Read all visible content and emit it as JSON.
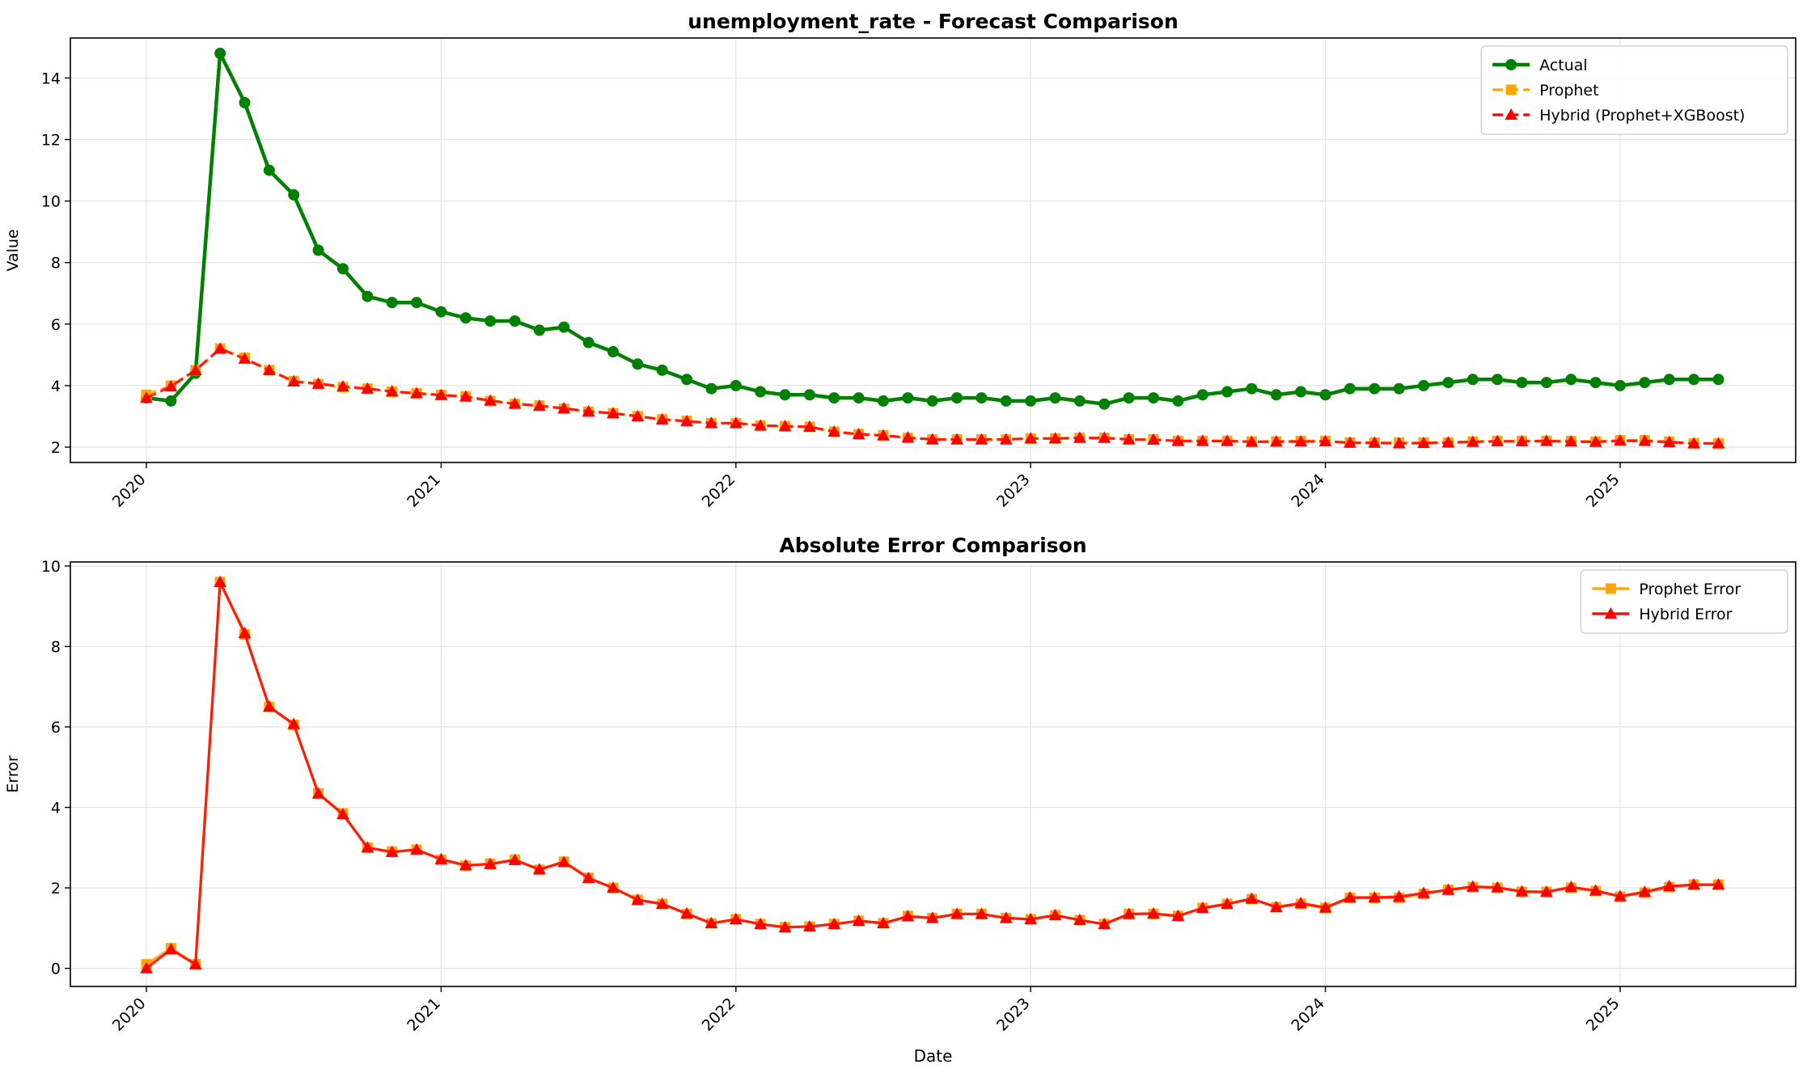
{
  "chart_data": [
    {
      "type": "line",
      "title": "unemployment_rate - Forecast Comparison",
      "xlabel": "",
      "ylabel": "Value",
      "x_ticks": [
        "2020",
        "2021",
        "2022",
        "2023",
        "2024",
        "2025"
      ],
      "y_ticks": [
        "2",
        "4",
        "6",
        "8",
        "10",
        "12",
        "14"
      ],
      "ylim": [
        1.5,
        15.3
      ],
      "grid": true,
      "legend_position": "top-right",
      "x": [
        "2020-01",
        "2020-02",
        "2020-03",
        "2020-04",
        "2020-05",
        "2020-06",
        "2020-07",
        "2020-08",
        "2020-09",
        "2020-10",
        "2020-11",
        "2020-12",
        "2021-01",
        "2021-02",
        "2021-03",
        "2021-04",
        "2021-05",
        "2021-06",
        "2021-07",
        "2021-08",
        "2021-09",
        "2021-10",
        "2021-11",
        "2021-12",
        "2022-01",
        "2022-02",
        "2022-03",
        "2022-04",
        "2022-05",
        "2022-06",
        "2022-07",
        "2022-08",
        "2022-09",
        "2022-10",
        "2022-11",
        "2022-12",
        "2023-01",
        "2023-02",
        "2023-03",
        "2023-04",
        "2023-05",
        "2023-06",
        "2023-07",
        "2023-08",
        "2023-09",
        "2023-10",
        "2023-11",
        "2023-12",
        "2024-01",
        "2024-02",
        "2024-03",
        "2024-04",
        "2024-05",
        "2024-06",
        "2024-07",
        "2024-08",
        "2024-09",
        "2024-10",
        "2024-11",
        "2024-12",
        "2025-01",
        "2025-02",
        "2025-03",
        "2025-04",
        "2025-05"
      ],
      "series": [
        {
          "name": "Actual",
          "color": "#008000",
          "marker": "circle",
          "style": "solid",
          "values": [
            3.6,
            3.5,
            4.4,
            14.8,
            13.2,
            11.0,
            10.2,
            8.4,
            7.8,
            6.9,
            6.7,
            6.7,
            6.4,
            6.2,
            6.1,
            6.1,
            5.8,
            5.9,
            5.4,
            5.1,
            4.7,
            4.5,
            4.2,
            3.9,
            4.0,
            3.8,
            3.7,
            3.7,
            3.6,
            3.6,
            3.5,
            3.6,
            3.5,
            3.6,
            3.6,
            3.5,
            3.5,
            3.6,
            3.5,
            3.4,
            3.6,
            3.6,
            3.5,
            3.7,
            3.8,
            3.9,
            3.7,
            3.8,
            3.7,
            3.9,
            3.9,
            3.9,
            4.0,
            4.1,
            4.2,
            4.2,
            4.1,
            4.1,
            4.2,
            4.1,
            4.0,
            4.1,
            4.2,
            4.2,
            4.2
          ]
        },
        {
          "name": "Prophet",
          "color": "#FFA500",
          "marker": "square",
          "style": "dashed",
          "values": [
            3.7,
            4.0,
            4.5,
            5.2,
            4.9,
            4.5,
            4.15,
            4.05,
            3.95,
            3.9,
            3.8,
            3.75,
            3.7,
            3.65,
            3.5,
            3.4,
            3.35,
            3.25,
            3.15,
            3.1,
            3.0,
            2.9,
            2.85,
            2.78,
            2.78,
            2.7,
            2.68,
            2.66,
            2.5,
            2.42,
            2.38,
            2.3,
            2.25,
            2.25,
            2.25,
            2.25,
            2.28,
            2.28,
            2.3,
            2.3,
            2.25,
            2.25,
            2.2,
            2.2,
            2.2,
            2.18,
            2.18,
            2.2,
            2.2,
            2.15,
            2.15,
            2.15,
            2.15,
            2.15,
            2.18,
            2.2,
            2.2,
            2.2,
            2.2,
            2.18,
            2.22,
            2.22,
            2.18,
            2.12,
            2.12
          ]
        },
        {
          "name": "Hybrid (Prophet+XGBoost)",
          "color": "#FF0000",
          "marker": "triangle",
          "style": "dashed",
          "values": [
            3.6,
            3.97,
            4.5,
            5.2,
            4.87,
            4.5,
            4.13,
            4.06,
            3.97,
            3.9,
            3.81,
            3.75,
            3.69,
            3.64,
            3.51,
            3.41,
            3.34,
            3.26,
            3.16,
            3.1,
            3.0,
            2.9,
            2.84,
            2.78,
            2.78,
            2.7,
            2.68,
            2.66,
            2.5,
            2.42,
            2.38,
            2.31,
            2.25,
            2.25,
            2.25,
            2.25,
            2.28,
            2.28,
            2.3,
            2.3,
            2.25,
            2.24,
            2.2,
            2.2,
            2.2,
            2.17,
            2.18,
            2.18,
            2.19,
            2.14,
            2.14,
            2.12,
            2.13,
            2.15,
            2.17,
            2.19,
            2.19,
            2.2,
            2.18,
            2.17,
            2.21,
            2.2,
            2.16,
            2.12,
            2.12
          ]
        }
      ]
    },
    {
      "type": "line",
      "title": "Absolute Error Comparison",
      "xlabel": "Date",
      "ylabel": "Error",
      "x_ticks": [
        "2020",
        "2021",
        "2022",
        "2023",
        "2024",
        "2025"
      ],
      "y_ticks": [
        "0",
        "2",
        "4",
        "6",
        "8",
        "10"
      ],
      "ylim": [
        -0.45,
        10.1
      ],
      "grid": true,
      "legend_position": "top-right",
      "x": [
        "2020-01",
        "2020-02",
        "2020-03",
        "2020-04",
        "2020-05",
        "2020-06",
        "2020-07",
        "2020-08",
        "2020-09",
        "2020-10",
        "2020-11",
        "2020-12",
        "2021-01",
        "2021-02",
        "2021-03",
        "2021-04",
        "2021-05",
        "2021-06",
        "2021-07",
        "2021-08",
        "2021-09",
        "2021-10",
        "2021-11",
        "2021-12",
        "2022-01",
        "2022-02",
        "2022-03",
        "2022-04",
        "2022-05",
        "2022-06",
        "2022-07",
        "2022-08",
        "2022-09",
        "2022-10",
        "2022-11",
        "2022-12",
        "2023-01",
        "2023-02",
        "2023-03",
        "2023-04",
        "2023-05",
        "2023-06",
        "2023-07",
        "2023-08",
        "2023-09",
        "2023-10",
        "2023-11",
        "2023-12",
        "2024-01",
        "2024-02",
        "2024-03",
        "2024-04",
        "2024-05",
        "2024-06",
        "2024-07",
        "2024-08",
        "2024-09",
        "2024-10",
        "2024-11",
        "2024-12",
        "2025-01",
        "2025-02",
        "2025-03",
        "2025-04",
        "2025-05"
      ],
      "series": [
        {
          "name": "Prophet Error",
          "color": "#FFA500",
          "marker": "square",
          "style": "solid",
          "values": [
            0.1,
            0.5,
            0.1,
            9.6,
            8.3,
            6.5,
            6.05,
            4.35,
            3.85,
            3.0,
            2.9,
            2.95,
            2.7,
            2.55,
            2.6,
            2.7,
            2.45,
            2.65,
            2.25,
            2.0,
            1.7,
            1.6,
            1.35,
            1.12,
            1.22,
            1.1,
            1.02,
            1.04,
            1.1,
            1.18,
            1.12,
            1.3,
            1.25,
            1.35,
            1.35,
            1.25,
            1.22,
            1.32,
            1.2,
            1.1,
            1.35,
            1.35,
            1.3,
            1.5,
            1.6,
            1.72,
            1.52,
            1.6,
            1.5,
            1.75,
            1.75,
            1.75,
            1.85,
            1.95,
            2.02,
            2.0,
            1.9,
            1.9,
            2.0,
            1.92,
            1.78,
            1.88,
            2.02,
            2.08,
            2.08
          ]
        },
        {
          "name": "Hybrid Error",
          "color": "#FF0000",
          "marker": "triangle",
          "style": "solid",
          "values": [
            0.0,
            0.47,
            0.1,
            9.6,
            8.33,
            6.5,
            6.07,
            4.34,
            3.83,
            3.0,
            2.89,
            2.95,
            2.71,
            2.56,
            2.59,
            2.69,
            2.46,
            2.64,
            2.24,
            2.0,
            1.7,
            1.6,
            1.36,
            1.12,
            1.22,
            1.1,
            1.02,
            1.04,
            1.1,
            1.18,
            1.12,
            1.29,
            1.25,
            1.35,
            1.35,
            1.25,
            1.22,
            1.32,
            1.2,
            1.1,
            1.35,
            1.36,
            1.3,
            1.5,
            1.6,
            1.73,
            1.52,
            1.62,
            1.51,
            1.76,
            1.76,
            1.78,
            1.87,
            1.95,
            2.03,
            2.01,
            1.91,
            1.9,
            2.02,
            1.93,
            1.79,
            1.9,
            2.04,
            2.08,
            2.08
          ]
        }
      ]
    }
  ]
}
